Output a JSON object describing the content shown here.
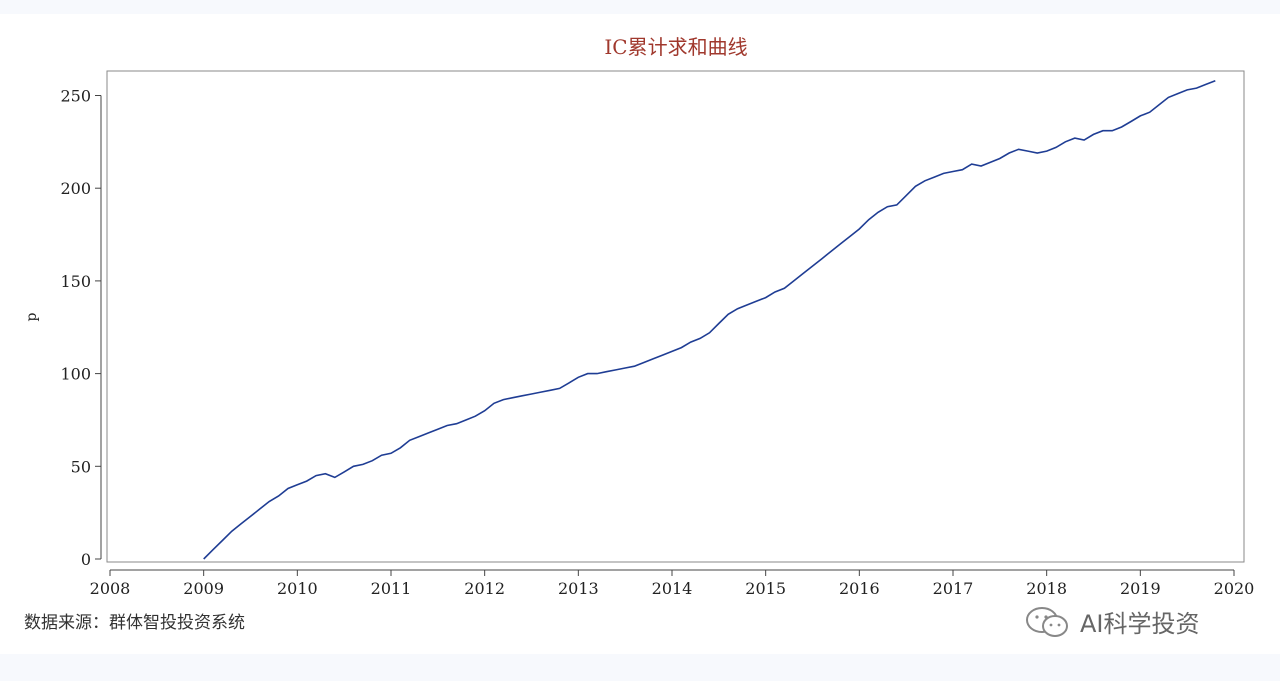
{
  "chart_data": {
    "type": "line",
    "title": "IC累计求和曲线",
    "xlabel": "",
    "ylabel": "p",
    "xlim": [
      2008,
      2020
    ],
    "ylim": [
      0,
      260
    ],
    "x_ticks": [
      2008,
      2009,
      2010,
      2011,
      2012,
      2013,
      2014,
      2015,
      2016,
      2017,
      2018,
      2019,
      2020
    ],
    "y_ticks": [
      0,
      50,
      100,
      150,
      200,
      250
    ],
    "grid": false,
    "legend": "none",
    "series": [
      {
        "color": "#1f3d94",
        "x": [
          2009.0,
          2009.1,
          2009.2,
          2009.3,
          2009.4,
          2009.5,
          2009.6,
          2009.7,
          2009.8,
          2009.9,
          2010.0,
          2010.1,
          2010.2,
          2010.3,
          2010.4,
          2010.5,
          2010.6,
          2010.7,
          2010.8,
          2010.9,
          2011.0,
          2011.1,
          2011.2,
          2011.3,
          2011.4,
          2011.5,
          2011.6,
          2011.7,
          2011.8,
          2011.9,
          2012.0,
          2012.1,
          2012.2,
          2012.3,
          2012.4,
          2012.5,
          2012.6,
          2012.7,
          2012.8,
          2012.9,
          2013.0,
          2013.1,
          2013.2,
          2013.3,
          2013.4,
          2013.5,
          2013.6,
          2013.7,
          2013.8,
          2013.9,
          2014.0,
          2014.1,
          2014.2,
          2014.3,
          2014.4,
          2014.5,
          2014.6,
          2014.7,
          2014.8,
          2014.9,
          2015.0,
          2015.1,
          2015.2,
          2015.3,
          2015.4,
          2015.5,
          2015.6,
          2015.7,
          2015.8,
          2015.9,
          2016.0,
          2016.1,
          2016.2,
          2016.3,
          2016.4,
          2016.5,
          2016.6,
          2016.7,
          2016.8,
          2016.9,
          2017.0,
          2017.1,
          2017.2,
          2017.3,
          2017.4,
          2017.5,
          2017.6,
          2017.7,
          2017.8,
          2017.9,
          2018.0,
          2018.1,
          2018.2,
          2018.3,
          2018.4,
          2018.5,
          2018.6,
          2018.7,
          2018.8,
          2018.9,
          2019.0,
          2019.1,
          2019.2,
          2019.3,
          2019.4,
          2019.5,
          2019.6,
          2019.7,
          2019.8
        ],
        "y": [
          0,
          5,
          10,
          15,
          19,
          23,
          27,
          31,
          34,
          38,
          40,
          42,
          45,
          46,
          44,
          47,
          50,
          51,
          53,
          56,
          57,
          60,
          64,
          66,
          68,
          70,
          72,
          73,
          75,
          77,
          80,
          84,
          86,
          87,
          88,
          89,
          90,
          91,
          92,
          95,
          98,
          100,
          100,
          101,
          102,
          103,
          104,
          106,
          108,
          110,
          112,
          114,
          117,
          119,
          122,
          127,
          132,
          135,
          137,
          139,
          141,
          144,
          146,
          150,
          154,
          158,
          162,
          166,
          170,
          174,
          178,
          183,
          187,
          190,
          191,
          196,
          201,
          204,
          206,
          208,
          209,
          210,
          213,
          212,
          214,
          216,
          219,
          221,
          220,
          219,
          220,
          222,
          225,
          227,
          226,
          229,
          231,
          231,
          233,
          236,
          239,
          241,
          245,
          249,
          251,
          253,
          254,
          256,
          258
        ]
      }
    ]
  },
  "source_note": "数据来源：群体智投投资系统",
  "watermark": {
    "text": "AI科学投资",
    "icon": "wechat-icon"
  }
}
